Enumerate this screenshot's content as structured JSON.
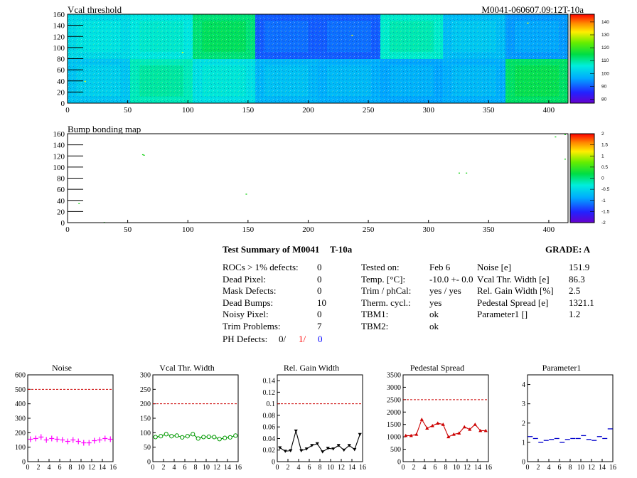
{
  "maps": [
    {
      "title": "Vcal threshold",
      "module_label": "M0041-060607.09:12T-10a",
      "x_ticks": [
        "0",
        "50",
        "100",
        "150",
        "200",
        "250",
        "300",
        "350",
        "400"
      ],
      "y_ticks": [
        "0",
        "20",
        "40",
        "60",
        "80",
        "100",
        "120",
        "140",
        "160"
      ],
      "x_range": [
        0,
        416
      ],
      "y_range": [
        0,
        160
      ],
      "palette_ticks": [
        "80",
        "90",
        "100",
        "110",
        "120",
        "130",
        "140"
      ],
      "palette_range": [
        77,
        146
      ],
      "roc_values": [
        [
          100,
          108,
          104,
          98,
          97,
          96,
          97,
          113
        ],
        [
          103,
          105,
          112,
          90,
          90,
          107,
          99,
          95
        ]
      ],
      "noise_points": [
        {
          "x": 14,
          "y": 40
        },
        {
          "x": 95,
          "y": 92
        },
        {
          "x": 236,
          "y": 123
        },
        {
          "x": 382,
          "y": 145
        }
      ]
    },
    {
      "title": "Bump bonding map",
      "x_ticks": [
        "0",
        "50",
        "100",
        "150",
        "200",
        "250",
        "300",
        "350",
        "400"
      ],
      "y_ticks": [
        "0",
        "20",
        "40",
        "60",
        "80",
        "100",
        "120",
        "140",
        "160"
      ],
      "x_range": [
        0,
        416
      ],
      "y_range": [
        0,
        160
      ],
      "palette_ticks": [
        "-2",
        "-1.5",
        "-1",
        "-0.5",
        "0",
        "0.5",
        "1",
        "1.5",
        "2"
      ],
      "palette_range": [
        -2,
        2
      ],
      "defect_points": [
        {
          "x": 9,
          "y": 35
        },
        {
          "x": 30,
          "y": 1
        },
        {
          "x": 62,
          "y": 123
        },
        {
          "x": 63,
          "y": 122
        },
        {
          "x": 148,
          "y": 52
        },
        {
          "x": 325,
          "y": 90
        },
        {
          "x": 331,
          "y": 90
        },
        {
          "x": 405,
          "y": 155
        },
        {
          "x": 413,
          "y": 115
        },
        {
          "x": 413,
          "y": 159
        }
      ]
    }
  ],
  "summary": {
    "heading": "Test Summary of M0041",
    "code": "T-10a",
    "grade": "GRADE:  A",
    "defects": [
      {
        "label": "ROCs > 1% defects:",
        "value": "0"
      },
      {
        "label": "Dead Pixel:",
        "value": "0"
      },
      {
        "label": "Mask Defects:",
        "value": "0"
      },
      {
        "label": "Dead Bumps:",
        "value": "10"
      },
      {
        "label": "Noisy Pixel:",
        "value": "0"
      },
      {
        "label": "Trim Problems:",
        "value": "7"
      }
    ],
    "ph_label": "PH Defects:",
    "ph_values": [
      {
        "text": "0/",
        "color": "#000000"
      },
      {
        "text": "1/",
        "color": "#ff0000"
      },
      {
        "text": "0",
        "color": "#0000ff"
      }
    ],
    "conditions": [
      {
        "label": "Tested on:",
        "value": "Feb 6"
      },
      {
        "label": "Temp. [°C]:",
        "value": "-10.0 +- 0.0"
      },
      {
        "label": "Trim / phCal:",
        "value": "yes / yes"
      },
      {
        "label": "Therm. cycl.:",
        "value": "yes"
      },
      {
        "label": "TBM1:",
        "value": "ok"
      },
      {
        "label": "TBM2:",
        "value": "ok"
      }
    ],
    "results": [
      {
        "label": "Noise [e]",
        "value": "151.9"
      },
      {
        "label": "Vcal Thr. Width [e]",
        "value": "86.3"
      },
      {
        "label": "Rel. Gain Width [%]",
        "value": "2.5"
      },
      {
        "label": "Pedestal Spread [e]",
        "value": "1321.1"
      },
      {
        "label": "Parameter1 []",
        "value": "1.2"
      }
    ]
  },
  "chart_data": [
    {
      "type": "scatter",
      "title": "Noise",
      "x_ticks": [
        "0",
        "2",
        "4",
        "6",
        "8",
        "10",
        "12",
        "14",
        "16"
      ],
      "ylim": [
        0,
        600
      ],
      "y_ticks": [
        0,
        100,
        200,
        300,
        400,
        500,
        600
      ],
      "limit": 500,
      "limit_color": "#cc0000",
      "series_color": "#ff00ff",
      "marker": "cross",
      "connected": false,
      "x": [
        0,
        1,
        2,
        3,
        4,
        5,
        6,
        7,
        8,
        9,
        10,
        11,
        12,
        13,
        14,
        15
      ],
      "values": [
        155,
        160,
        170,
        150,
        160,
        155,
        150,
        140,
        150,
        140,
        130,
        130,
        145,
        150,
        160,
        155
      ]
    },
    {
      "type": "line",
      "title": "Vcal Thr. Width",
      "x_ticks": [
        "0",
        "2",
        "4",
        "6",
        "8",
        "10",
        "12",
        "14",
        "16"
      ],
      "ylim": [
        0,
        300
      ],
      "y_ticks": [
        0,
        50,
        100,
        150,
        200,
        250,
        300
      ],
      "limit": 200,
      "limit_color": "#cc0000",
      "series_color": "#009900",
      "marker": "open-circle",
      "connected": true,
      "x": [
        0,
        1,
        2,
        3,
        4,
        5,
        6,
        7,
        8,
        9,
        10,
        11,
        12,
        13,
        14,
        15
      ],
      "values": [
        85,
        88,
        95,
        88,
        90,
        84,
        88,
        95,
        80,
        85,
        86,
        85,
        78,
        82,
        84,
        90
      ]
    },
    {
      "type": "line",
      "title": "Rel. Gain Width",
      "x_ticks": [
        "0",
        "2",
        "4",
        "6",
        "8",
        "10",
        "12",
        "14",
        "16"
      ],
      "ylim": [
        0,
        0.15
      ],
      "y_ticks": [
        0,
        0.02,
        0.04,
        0.06,
        0.08,
        0.1,
        0.12,
        0.14
      ],
      "limit": 0.1,
      "limit_color": "#cc0000",
      "series_color": "#000000",
      "marker": "down-triangle",
      "connected": true,
      "x": [
        0,
        1,
        2,
        3,
        4,
        5,
        6,
        7,
        8,
        9,
        10,
        11,
        12,
        13,
        14,
        15
      ],
      "values": [
        0.024,
        0.018,
        0.019,
        0.053,
        0.019,
        0.022,
        0.028,
        0.031,
        0.017,
        0.023,
        0.022,
        0.028,
        0.02,
        0.028,
        0.021,
        0.047
      ]
    },
    {
      "type": "line",
      "title": "Pedestal Spread",
      "x_ticks": [
        "0",
        "2",
        "4",
        "6",
        "8",
        "10",
        "12",
        "14",
        "16"
      ],
      "ylim": [
        0,
        3500
      ],
      "y_ticks": [
        0,
        500,
        1000,
        1500,
        2000,
        2500,
        3000,
        3500
      ],
      "limit": 2500,
      "limit_color": "#cc0000",
      "series_color": "#cc0000",
      "marker": "up-triangle",
      "connected": true,
      "x": [
        0,
        1,
        2,
        3,
        4,
        5,
        6,
        7,
        8,
        9,
        10,
        11,
        12,
        13,
        14,
        15
      ],
      "values": [
        1050,
        1050,
        1100,
        1700,
        1350,
        1450,
        1550,
        1500,
        1000,
        1100,
        1150,
        1400,
        1300,
        1500,
        1250,
        1250
      ]
    },
    {
      "type": "scatter",
      "title": "Parameter1",
      "x_ticks": [
        "0",
        "2",
        "4",
        "6",
        "8",
        "10",
        "12",
        "14",
        "16"
      ],
      "ylim": [
        0,
        4.5
      ],
      "y_ticks": [
        0,
        1,
        2,
        3,
        4
      ],
      "limit": null,
      "series_color": "#0000cc",
      "marker": "hline",
      "connected": false,
      "x": [
        0,
        1,
        2,
        3,
        4,
        5,
        6,
        7,
        8,
        9,
        10,
        11,
        12,
        13,
        14,
        15
      ],
      "values": [
        1.3,
        1.2,
        1.0,
        1.1,
        1.15,
        1.2,
        1.0,
        1.15,
        1.2,
        1.2,
        1.35,
        1.15,
        1.1,
        1.3,
        1.2,
        1.7
      ]
    }
  ]
}
